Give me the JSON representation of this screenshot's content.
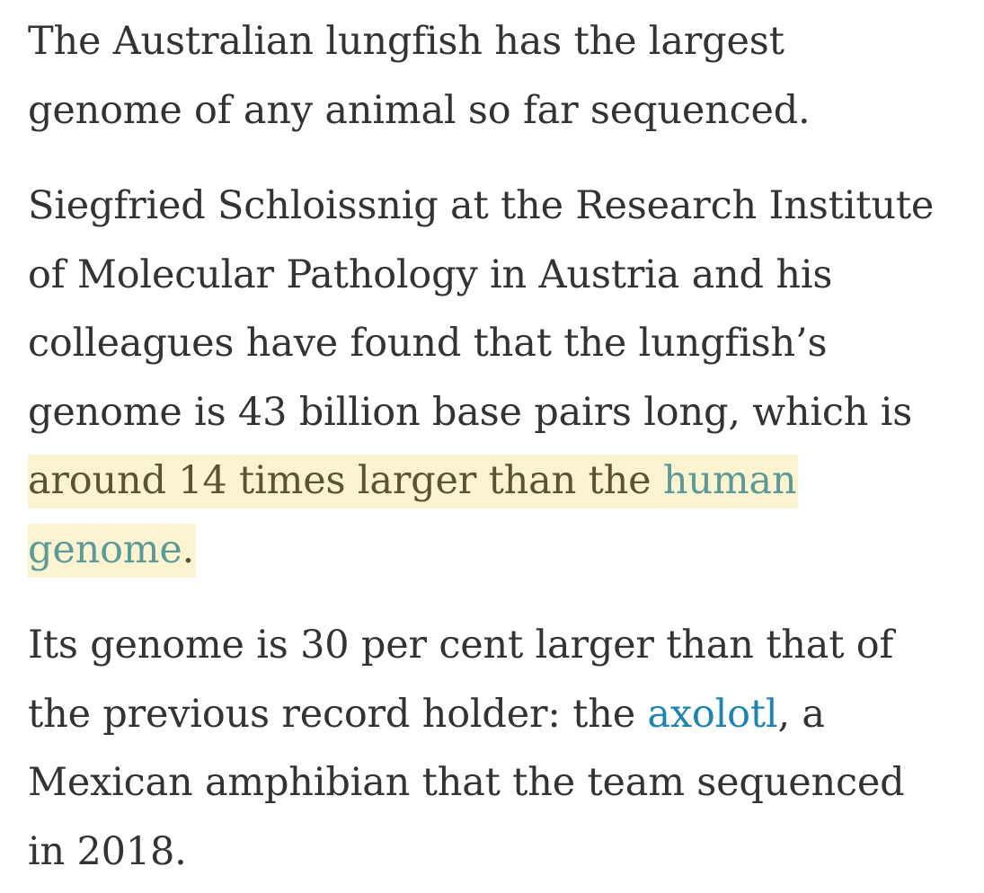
{
  "paragraphs": [
    {
      "lines": [
        "The Australian lungfish has the largest",
        "genome of any animal so far sequenced."
      ]
    },
    {
      "lines": [
        "Siegfried Schloissnig at the Research Institute",
        "of Molecular Pathology in Austria and his",
        "colleagues have found that the lungfish’s",
        "genome is 43 billion base pairs long, which is"
      ],
      "highlight_text": "around 14 times larger than the ",
      "highlight_link_1": "human",
      "highlight_link_2": "genome",
      "highlight_end": "."
    },
    {
      "lines": [
        "Its genome is 30 per cent larger than that of"
      ],
      "line2_before": "the previous record holder: the ",
      "link": "axolotl",
      "line2_after": ", a",
      "lines_after": [
        "Mexican amphibian that the team sequenced",
        "in 2018."
      ]
    }
  ]
}
